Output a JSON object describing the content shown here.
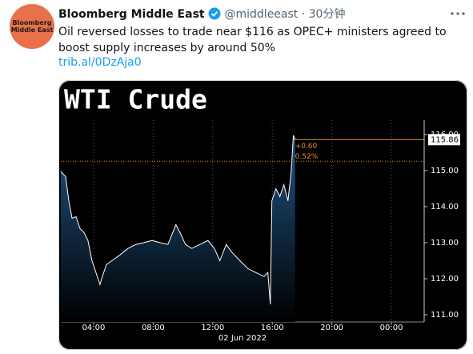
{
  "tweet": {
    "avatar_label": [
      "Bloomberg",
      "Middle East"
    ],
    "author": "Bloomberg Middle East",
    "handle": "@middleeast",
    "time": "30分钟",
    "text": "Oil reversed losses to trade near $116 as OPEC+ ministers agreed to boost supply increases by around 50%",
    "link": "trib.al/0DzAja0"
  },
  "chart_data": {
    "type": "area",
    "title": "WTI Crude",
    "x": [
      1.8,
      2.12,
      2.34,
      2.55,
      2.82,
      3.09,
      3.36,
      3.62,
      3.89,
      4.16,
      4.43,
      4.59,
      4.86,
      5.23,
      5.77,
      6.31,
      6.85,
      7.38,
      7.92,
      8.46,
      8.99,
      9.53,
      9.8,
      10.17,
      10.6,
      11.14,
      11.68,
      12.11,
      12.48,
      12.91,
      13.29,
      13.83,
      14.36,
      14.9,
      15.44,
      15.7,
      15.87,
      15.97,
      16.24,
      16.51,
      16.78,
      17.05,
      17.26,
      17.42,
      17.53
    ],
    "values": [
      114.98,
      114.83,
      114.16,
      113.68,
      113.72,
      113.39,
      113.28,
      113.06,
      112.5,
      112.17,
      111.84,
      112.06,
      112.39,
      112.5,
      112.66,
      112.84,
      112.95,
      113.0,
      113.06,
      113.0,
      112.95,
      113.5,
      113.28,
      112.95,
      112.84,
      112.95,
      113.06,
      112.84,
      112.5,
      112.95,
      112.73,
      112.5,
      112.28,
      112.17,
      112.06,
      112.17,
      111.29,
      114.16,
      114.5,
      114.28,
      114.61,
      114.16,
      114.94,
      115.98,
      115.86
    ],
    "xlim": [
      1.8,
      26.2
    ],
    "xticks": [
      {
        "value": 4,
        "label": "04:00"
      },
      {
        "value": 8,
        "label": "08:00"
      },
      {
        "value": 12,
        "label": "12:00"
      },
      {
        "value": 16,
        "label": "16:00"
      },
      {
        "value": 20,
        "label": "20:00"
      },
      {
        "value": 24,
        "label": "00:00"
      }
    ],
    "xlabel": "02 Jun 2022",
    "ylim": [
      110.8,
      116.4
    ],
    "yticks": [
      {
        "value": 111,
        "label": "111.00"
      },
      {
        "value": 112,
        "label": "112.00"
      },
      {
        "value": 113,
        "label": "113.00"
      },
      {
        "value": 114,
        "label": "114.00"
      },
      {
        "value": 115,
        "label": "115.00"
      },
      {
        "value": 116,
        "label": "116.00"
      }
    ],
    "last_value": 115.86,
    "reference_value": 115.26,
    "annotations": [
      "+0.60",
      "0.52%"
    ],
    "color": "#ffffff",
    "fill_color": "#1f5584",
    "reference_color": "#e8902a",
    "grid": true
  }
}
